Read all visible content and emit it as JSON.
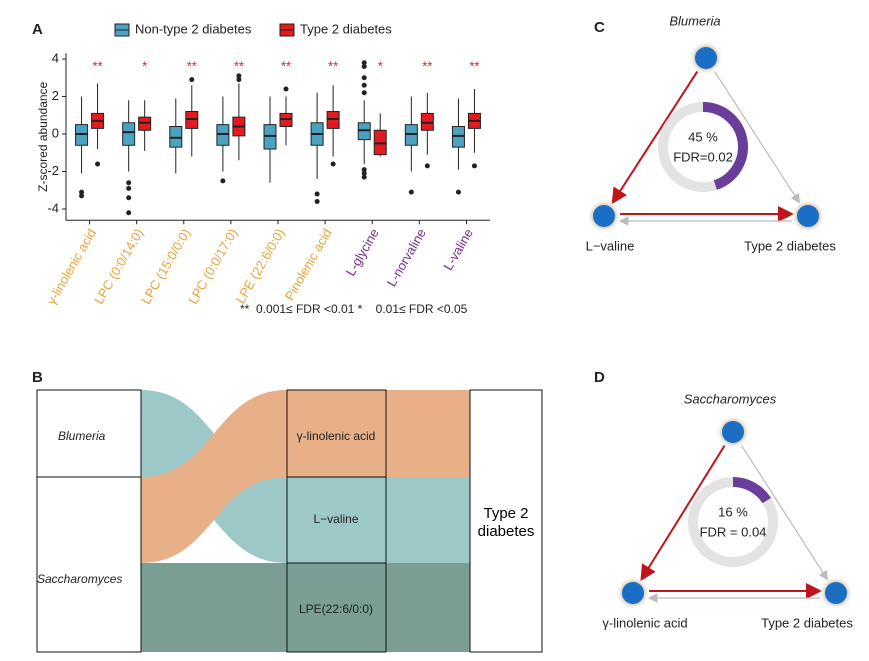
{
  "panel_labels": [
    "A",
    "B",
    "C",
    "D"
  ],
  "chart_data": {
    "type": "box",
    "y_label": "Z-scored abundance",
    "categories": [
      "γ-linolenic acid",
      "LPC (0:0/14:0)",
      "LPC (15:0/0:0)",
      "LPC (0:0/17:0)",
      "LPE (22:6/0:0)",
      "Pinolenic acid",
      "L-glycine",
      "L-norvaline",
      "L-valine"
    ],
    "category_colors": [
      "#e8a33d",
      "#e8a33d",
      "#e8a33d",
      "#e8a33d",
      "#e8a33d",
      "#e8a33d",
      "#7b2d8e",
      "#7b2d8e",
      "#7b2d8e"
    ],
    "significance": [
      "**",
      "*",
      "**",
      "**",
      "**",
      "**",
      "*",
      "**",
      "**"
    ],
    "significance_color": "#e41a1c",
    "footnote": "**  0.001≤ FDR <0.01 *    0.01≤ FDR <0.05",
    "ylim": [
      -4.6,
      4.3
    ],
    "yticks": [
      -4,
      -2,
      0,
      2,
      4
    ],
    "series": [
      {
        "name": "Non-type 2 diabetes",
        "color": "#4ba3c3",
        "boxes": [
          {
            "low": -2.1,
            "q1": -0.6,
            "median": 0,
            "q3": 0.5,
            "high": 2.0,
            "outliers": [
              -3.1,
              -3.3
            ]
          },
          {
            "low": -2.0,
            "q1": -0.6,
            "median": 0.1,
            "q3": 0.6,
            "high": 1.8,
            "outliers": [
              -2.6,
              -2.9,
              -3.4,
              -4.2
            ]
          },
          {
            "low": -2.1,
            "q1": -0.7,
            "median": -0.2,
            "q3": 0.4,
            "high": 1.9,
            "outliers": []
          },
          {
            "low": -2.0,
            "q1": -0.6,
            "median": 0,
            "q3": 0.5,
            "high": 2.0,
            "outliers": [
              -2.5
            ]
          },
          {
            "low": -2.6,
            "q1": -0.8,
            "median": -0.1,
            "q3": 0.5,
            "high": 2.0,
            "outliers": []
          },
          {
            "low": -2.4,
            "q1": -0.6,
            "median": 0,
            "q3": 0.6,
            "high": 2.2,
            "outliers": [
              -3.2,
              -3.6
            ]
          },
          {
            "low": -1.6,
            "q1": -0.3,
            "median": 0.2,
            "q3": 0.6,
            "high": 1.8,
            "outliers": [
              2.2,
              2.6,
              3.0,
              3.6,
              3.8,
              -1.9,
              -2.1,
              -2.3
            ]
          },
          {
            "low": -2.0,
            "q1": -0.6,
            "median": 0,
            "q3": 0.5,
            "high": 2.0,
            "outliers": [
              -3.1
            ]
          },
          {
            "low": -1.9,
            "q1": -0.7,
            "median": -0.1,
            "q3": 0.4,
            "high": 1.9,
            "outliers": [
              -3.1
            ]
          }
        ]
      },
      {
        "name": "Type 2 diabetes",
        "color": "#e41a1c",
        "boxes": [
          {
            "low": -0.8,
            "q1": 0.3,
            "median": 0.7,
            "q3": 1.1,
            "high": 2.7,
            "outliers": [
              -1.6
            ]
          },
          {
            "low": -0.9,
            "q1": 0.2,
            "median": 0.6,
            "q3": 0.9,
            "high": 1.8,
            "outliers": []
          },
          {
            "low": -1.2,
            "q1": 0.3,
            "median": 0.8,
            "q3": 1.2,
            "high": 2.6,
            "outliers": [
              2.9
            ]
          },
          {
            "low": -1.4,
            "q1": -0.1,
            "median": 0.4,
            "q3": 0.9,
            "high": 2.7,
            "outliers": [
              2.9,
              3.1
            ]
          },
          {
            "low": -0.6,
            "q1": 0.4,
            "median": 0.8,
            "q3": 1.1,
            "high": 2.0,
            "outliers": [
              2.4
            ]
          },
          {
            "low": -1.2,
            "q1": 0.3,
            "median": 0.8,
            "q3": 1.2,
            "high": 2.6,
            "outliers": [
              -1.6
            ]
          },
          {
            "low": -1.2,
            "q1": -1.1,
            "median": -0.5,
            "q3": 0.2,
            "high": 1.1,
            "outliers": []
          },
          {
            "low": -1.1,
            "q1": 0.2,
            "median": 0.6,
            "q3": 1.1,
            "high": 2.2,
            "outliers": [
              -1.7
            ]
          },
          {
            "low": -1.0,
            "q1": 0.3,
            "median": 0.7,
            "q3": 1.1,
            "high": 2.4,
            "outliers": [
              -1.7
            ]
          }
        ]
      }
    ]
  },
  "sankey": {
    "taxa": [
      "Blumeria",
      "Saccharomyces"
    ],
    "metabolites": [
      "γ-linolenic acid",
      "L−valine",
      "LPE(22:6/0:0)"
    ],
    "outcome": "Type 2 diabetes"
  },
  "mediation": [
    {
      "taxon": "Blumeria",
      "percent": 45,
      "percent_label": "45 %",
      "fdr": "FDR=0.02",
      "mediator": "L−valine",
      "outcome": "Type 2 diabetes"
    },
    {
      "taxon": "Saccharomyces",
      "percent": 16,
      "percent_label": "16 %",
      "fdr": "FDR = 0.04",
      "mediator": "γ-linolenic acid",
      "outcome": "Type 2 diabetes"
    }
  ]
}
